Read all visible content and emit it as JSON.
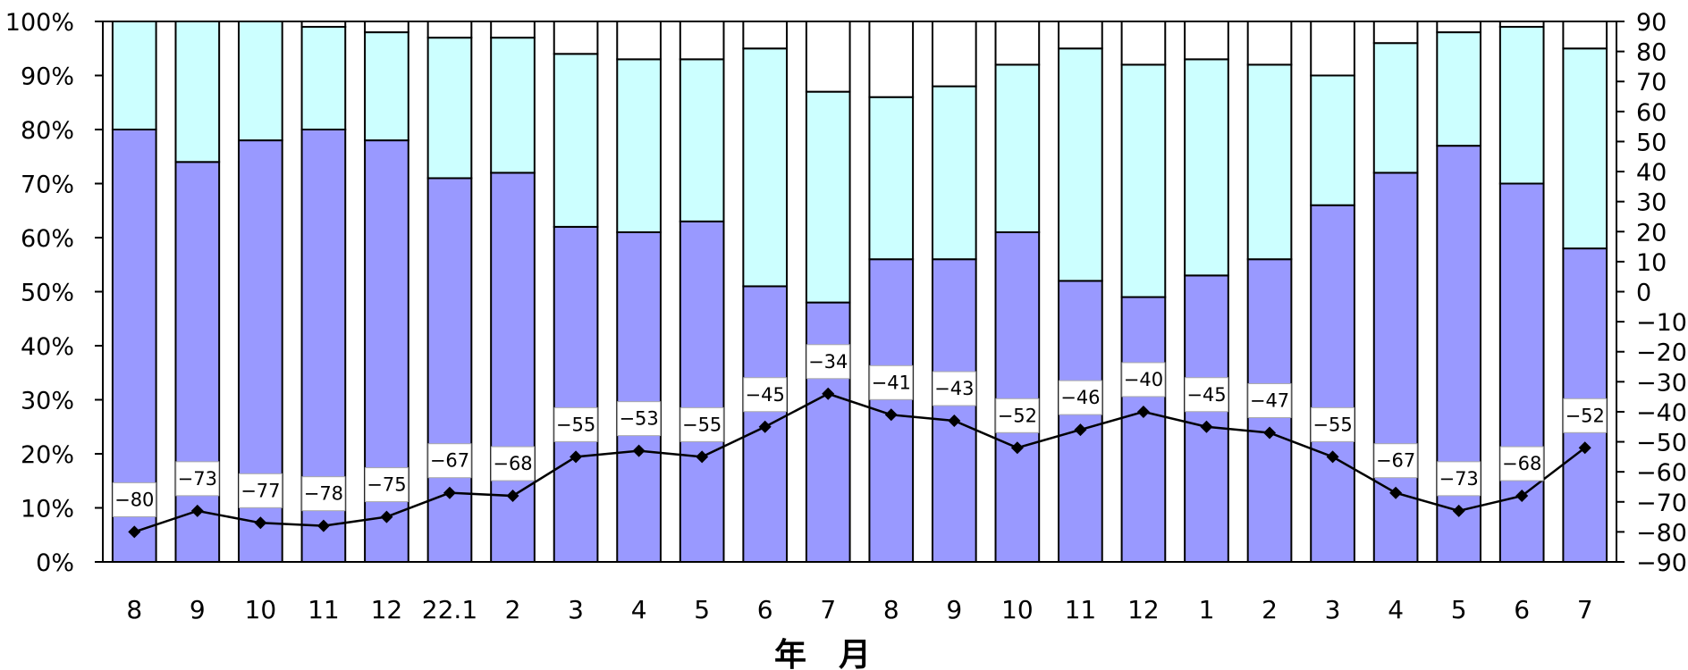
{
  "chart_data": {
    "type": "bar",
    "stacked": true,
    "categories": [
      "8",
      "9",
      "10",
      "11",
      "12",
      "22.1",
      "2",
      "3",
      "4",
      "5",
      "6",
      "7",
      "8",
      "9",
      "10",
      "11",
      "12",
      "1",
      "2",
      "3",
      "4",
      "5",
      "6",
      "7"
    ],
    "series": [
      {
        "values": [
          80,
          74,
          78,
          80,
          78,
          71,
          72,
          62,
          61,
          63,
          51,
          48,
          56,
          56,
          61,
          52,
          49,
          53,
          56,
          66,
          72,
          77,
          70,
          58
        ],
        "color": "#9999ff"
      },
      {
        "values": [
          20,
          26,
          22,
          19,
          20,
          26,
          25,
          32,
          32,
          30,
          44,
          39,
          30,
          32,
          31,
          43,
          43,
          40,
          36,
          24,
          24,
          21,
          29,
          37
        ],
        "color": "#ccffff"
      },
      {
        "values": [
          0,
          0,
          0,
          1,
          2,
          3,
          3,
          6,
          7,
          7,
          5,
          13,
          14,
          12,
          8,
          5,
          8,
          7,
          8,
          10,
          4,
          2,
          1,
          5
        ],
        "color": "#ffffff"
      },
      {
        "type": "line",
        "axis": "right",
        "color": "#000000",
        "values": [
          -80,
          -73,
          -77,
          -78,
          -75,
          -67,
          -68,
          -55,
          -53,
          -55,
          -45,
          -34,
          -41,
          -43,
          -52,
          -46,
          -40,
          -45,
          -47,
          -55,
          -67,
          -73,
          -68,
          -52
        ]
      }
    ],
    "left_axis": {
      "ylim": [
        0,
        100
      ],
      "ticks": [
        "0%",
        "10%",
        "20%",
        "30%",
        "40%",
        "50%",
        "60%",
        "70%",
        "80%",
        "90%",
        "100%"
      ]
    },
    "right_axis": {
      "ylim": [
        -90,
        90
      ],
      "ticks": [
        "−90",
        "−80",
        "−70",
        "−60",
        "−50",
        "−40",
        "−30",
        "−20",
        "−10",
        "0",
        "10",
        "20",
        "30",
        "40",
        "50",
        "60",
        "70",
        "80",
        "90"
      ]
    },
    "xlabel": "年　月",
    "data_labels": [
      "−80",
      "−73",
      "−77",
      "−78",
      "−75",
      "−67",
      "−68",
      "−55",
      "−53",
      "−55",
      "−45",
      "−34",
      "−41",
      "−43",
      "−52",
      "−46",
      "−40",
      "−45",
      "−47",
      "−55",
      "−67",
      "−73",
      "−68",
      "−52"
    ],
    "grid": false,
    "legend": "none"
  }
}
